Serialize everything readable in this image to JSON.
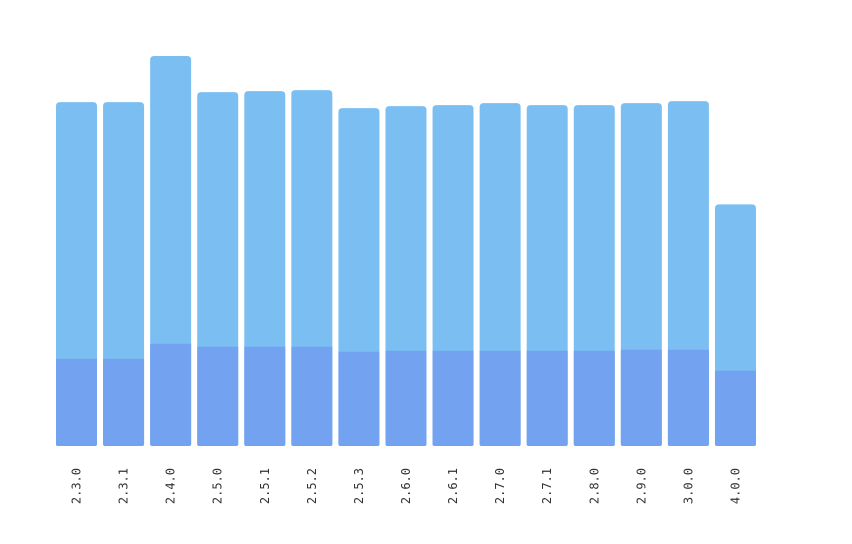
{
  "chart_data": {
    "type": "bar",
    "stacked": true,
    "title": "",
    "xlabel": "",
    "ylabel": "",
    "categories": [
      "2.3.0",
      "2.3.1",
      "2.4.0",
      "2.5.0",
      "2.5.1",
      "2.5.2",
      "2.5.3",
      "2.6.0",
      "2.6.1",
      "2.7.0",
      "2.7.1",
      "2.8.0",
      "2.9.0",
      "3.0.0",
      "4.0.0"
    ],
    "series": [
      {
        "color": "#72a2f0",
        "values": [
          87,
          87,
          102,
          99,
          99,
          99,
          94,
          95,
          95,
          95,
          95,
          95,
          96,
          96,
          75
        ]
      },
      {
        "color": "#7bbff2",
        "values": [
          256,
          256,
          287,
          254,
          255,
          256,
          243,
          244,
          245,
          247,
          245,
          245,
          246,
          248,
          166
        ]
      }
    ],
    "ylim": [
      0,
      390
    ],
    "grid": false,
    "legend": "none"
  }
}
